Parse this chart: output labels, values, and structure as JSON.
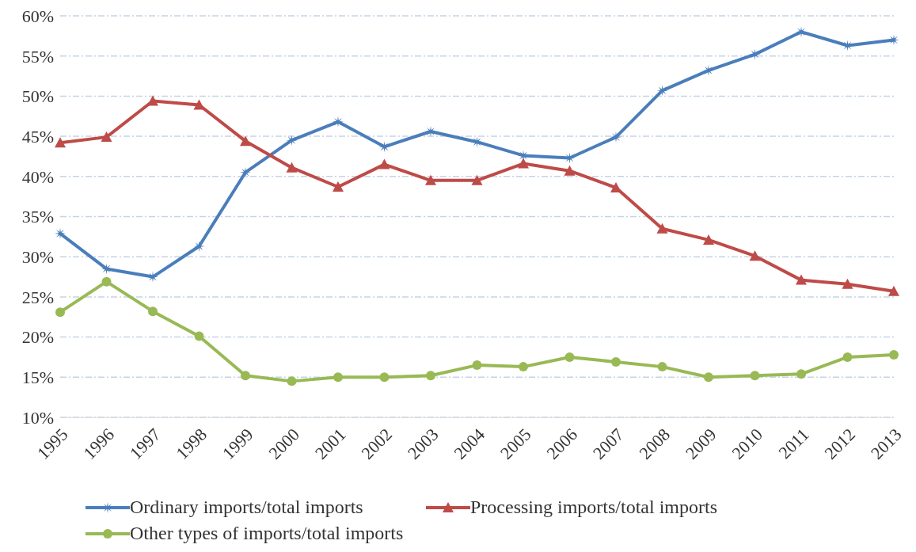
{
  "chart_data": {
    "type": "line",
    "categories": [
      "1995",
      "1996",
      "1997",
      "1998",
      "1999",
      "2000",
      "2001",
      "2002",
      "2003",
      "2004",
      "2005",
      "2006",
      "2007",
      "2008",
      "2009",
      "2010",
      "2011",
      "2012",
      "2013"
    ],
    "series": [
      {
        "name": "Ordinary imports/total imports",
        "color": "#4a7ebb",
        "marker": "star",
        "values": [
          32.9,
          28.5,
          27.5,
          31.3,
          40.5,
          44.5,
          46.8,
          43.7,
          45.6,
          44.3,
          42.6,
          42.3,
          44.9,
          50.7,
          53.2,
          55.2,
          58.0,
          56.3,
          57.0
        ]
      },
      {
        "name": "Processing imports/total imports",
        "color": "#be4b48",
        "marker": "triangle",
        "values": [
          44.2,
          44.9,
          49.4,
          48.9,
          44.4,
          41.1,
          38.7,
          41.5,
          39.5,
          39.5,
          41.6,
          40.7,
          38.6,
          33.5,
          32.1,
          30.1,
          27.1,
          26.6,
          25.7
        ]
      },
      {
        "name": "Other types of imports/total imports",
        "color": "#98b954",
        "marker": "circle",
        "values": [
          23.1,
          26.9,
          23.2,
          20.1,
          15.2,
          14.5,
          15.0,
          15.0,
          15.2,
          16.5,
          16.3,
          17.5,
          16.9,
          16.3,
          15.0,
          15.2,
          15.4,
          17.5,
          17.8
        ]
      }
    ],
    "ylim": [
      10,
      60
    ],
    "yticks": [
      {
        "value": 10,
        "label": "10%"
      },
      {
        "value": 15,
        "label": "15%"
      },
      {
        "value": 20,
        "label": "20%"
      },
      {
        "value": 25,
        "label": "25%"
      },
      {
        "value": 30,
        "label": "30%"
      },
      {
        "value": 35,
        "label": "35%"
      },
      {
        "value": 40,
        "label": "40%"
      },
      {
        "value": 45,
        "label": "45%"
      },
      {
        "value": 50,
        "label": "50%"
      },
      {
        "value": 55,
        "label": "55%"
      },
      {
        "value": 60,
        "label": "60%"
      }
    ],
    "grid": "y",
    "legend": "bottom",
    "line_style": "solid"
  }
}
